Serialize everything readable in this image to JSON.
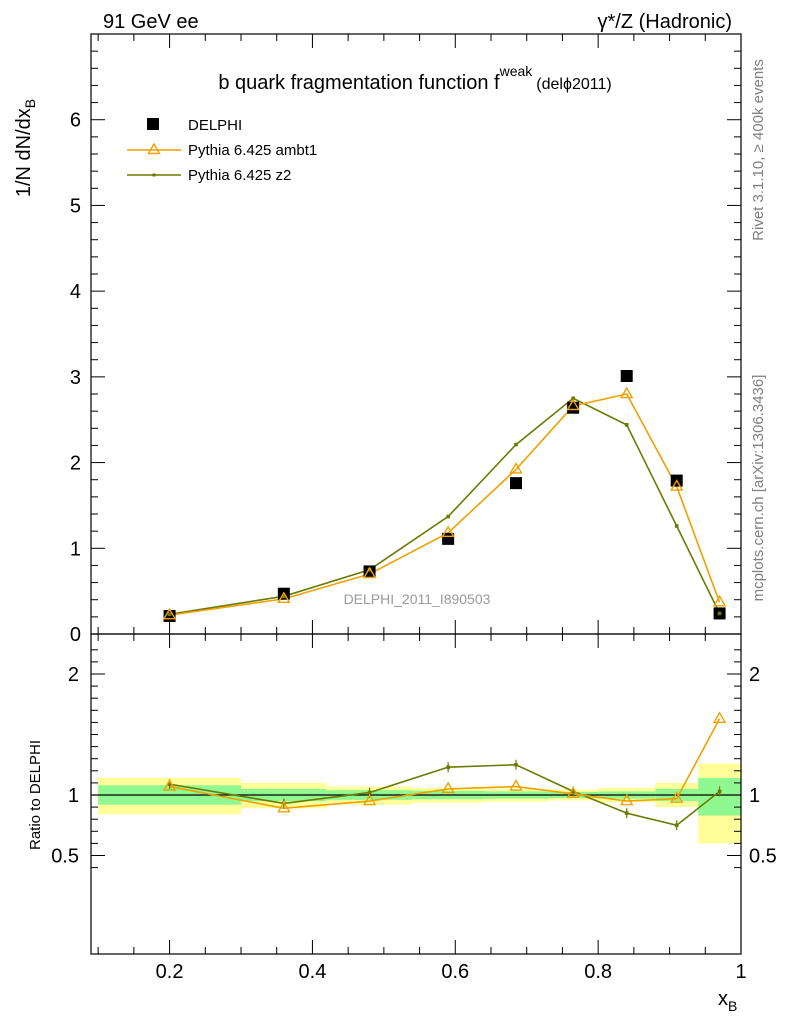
{
  "header": {
    "left": "91 GeV ee",
    "right": "γ*/Z (Hadronic)"
  },
  "side_text": {
    "rivet": "Rivet 3.1.10, ≥ 400k events",
    "mcplots": "mcplots.cern.ch [arXiv:1306.3436]"
  },
  "colors": {
    "data": "#000000",
    "ambt1": "#f0a000",
    "z2": "#6b7a00",
    "band_stat": "#90f890",
    "band_total": "#ffff99"
  },
  "chart_data": [
    {
      "type": "scatter",
      "title": "b quark fragmentation function f",
      "title_sup": "weak",
      "title_tag": "(delϕ2011)",
      "ylabel": "1/N dN/dx",
      "ylabel_sub": "B",
      "watermark": "DELPHI_2011_I890503",
      "xlim": [
        0.09,
        1.0
      ],
      "ylim": [
        0,
        7
      ],
      "y_ticks": [
        0,
        1,
        2,
        3,
        4,
        5,
        6
      ],
      "y_tick_labels": [
        "0",
        "1",
        "2",
        "3",
        "4",
        "5",
        "6"
      ],
      "x_ticks": [
        0.2,
        0.4,
        0.6,
        0.8,
        1.0
      ],
      "legend_position": "top-left",
      "series": [
        {
          "name": "DELPHI",
          "marker": "square",
          "x": [
            0.2,
            0.36,
            0.48,
            0.59,
            0.685,
            0.765,
            0.84,
            0.91,
            0.97
          ],
          "y": [
            0.21,
            0.47,
            0.73,
            1.11,
            1.76,
            2.64,
            3.01,
            1.79,
            0.24
          ]
        },
        {
          "name": "Pythia 6.425 ambt1",
          "marker": "triangle",
          "x": [
            0.2,
            0.36,
            0.48,
            0.59,
            0.685,
            0.765,
            0.84,
            0.91,
            0.97
          ],
          "y": [
            0.22,
            0.41,
            0.7,
            1.18,
            1.92,
            2.66,
            2.8,
            1.72,
            0.37
          ]
        },
        {
          "name": "Pythia 6.425 z2",
          "marker": "dot",
          "x": [
            0.2,
            0.36,
            0.48,
            0.59,
            0.685,
            0.765,
            0.84,
            0.91,
            0.97
          ],
          "y": [
            0.23,
            0.44,
            0.75,
            1.37,
            2.21,
            2.75,
            2.44,
            1.26,
            0.24
          ]
        }
      ]
    },
    {
      "type": "line",
      "ylabel": "Ratio to DELPHI",
      "xlabel": "x",
      "xlabel_sub": "B",
      "xlim": [
        0.09,
        1.0
      ],
      "ylim": [
        0.35,
        2.3
      ],
      "y_tick_labels": [
        {
          "value": 0.5,
          "label": "0.5"
        },
        {
          "value": 1,
          "label": "1"
        },
        {
          "value": 2,
          "label": "2"
        }
      ],
      "x_tick_labels": [
        {
          "value": 0.2,
          "label": "0.2"
        },
        {
          "value": 0.4,
          "label": "0.4"
        },
        {
          "value": 0.6,
          "label": "0.6"
        },
        {
          "value": 0.8,
          "label": "0.8"
        },
        {
          "value": 1.0,
          "label": "1"
        }
      ],
      "reference_line": 1,
      "bands": [
        {
          "x0": 0.1,
          "x1": 0.3,
          "stat": [
            0.92,
            1.08
          ],
          "total": [
            0.84,
            1.14
          ]
        },
        {
          "x0": 0.3,
          "x1": 0.42,
          "stat": [
            0.95,
            1.05
          ],
          "total": [
            0.89,
            1.1
          ]
        },
        {
          "x0": 0.42,
          "x1": 0.54,
          "stat": [
            0.96,
            1.04
          ],
          "total": [
            0.92,
            1.07
          ]
        },
        {
          "x0": 0.54,
          "x1": 0.64,
          "stat": [
            0.965,
            1.035
          ],
          "total": [
            0.935,
            1.06
          ]
        },
        {
          "x0": 0.64,
          "x1": 0.73,
          "stat": [
            0.97,
            1.03
          ],
          "total": [
            0.945,
            1.05
          ]
        },
        {
          "x0": 0.73,
          "x1": 0.8,
          "stat": [
            0.975,
            1.025
          ],
          "total": [
            0.955,
            1.045
          ]
        },
        {
          "x0": 0.8,
          "x1": 0.88,
          "stat": [
            0.97,
            1.03
          ],
          "total": [
            0.94,
            1.06
          ]
        },
        {
          "x0": 0.88,
          "x1": 0.94,
          "stat": [
            0.95,
            1.05
          ],
          "total": [
            0.9,
            1.1
          ]
        },
        {
          "x0": 0.94,
          "x1": 1.0,
          "stat": [
            0.83,
            1.14
          ],
          "total": [
            0.6,
            1.26
          ]
        }
      ],
      "series": [
        {
          "name": "Pythia 6.425 ambt1",
          "marker": "triangle",
          "x": [
            0.2,
            0.36,
            0.48,
            0.59,
            0.685,
            0.765,
            0.84,
            0.91,
            0.97
          ],
          "y": [
            1.07,
            0.89,
            0.95,
            1.05,
            1.07,
            1.01,
            0.95,
            0.97,
            1.63
          ]
        },
        {
          "name": "Pythia 6.425 z2",
          "marker": "dot",
          "x": [
            0.2,
            0.36,
            0.48,
            0.59,
            0.685,
            0.765,
            0.84,
            0.91,
            0.97
          ],
          "y": [
            1.09,
            0.93,
            1.02,
            1.23,
            1.25,
            1.03,
            0.85,
            0.75,
            1.03
          ]
        }
      ]
    }
  ]
}
